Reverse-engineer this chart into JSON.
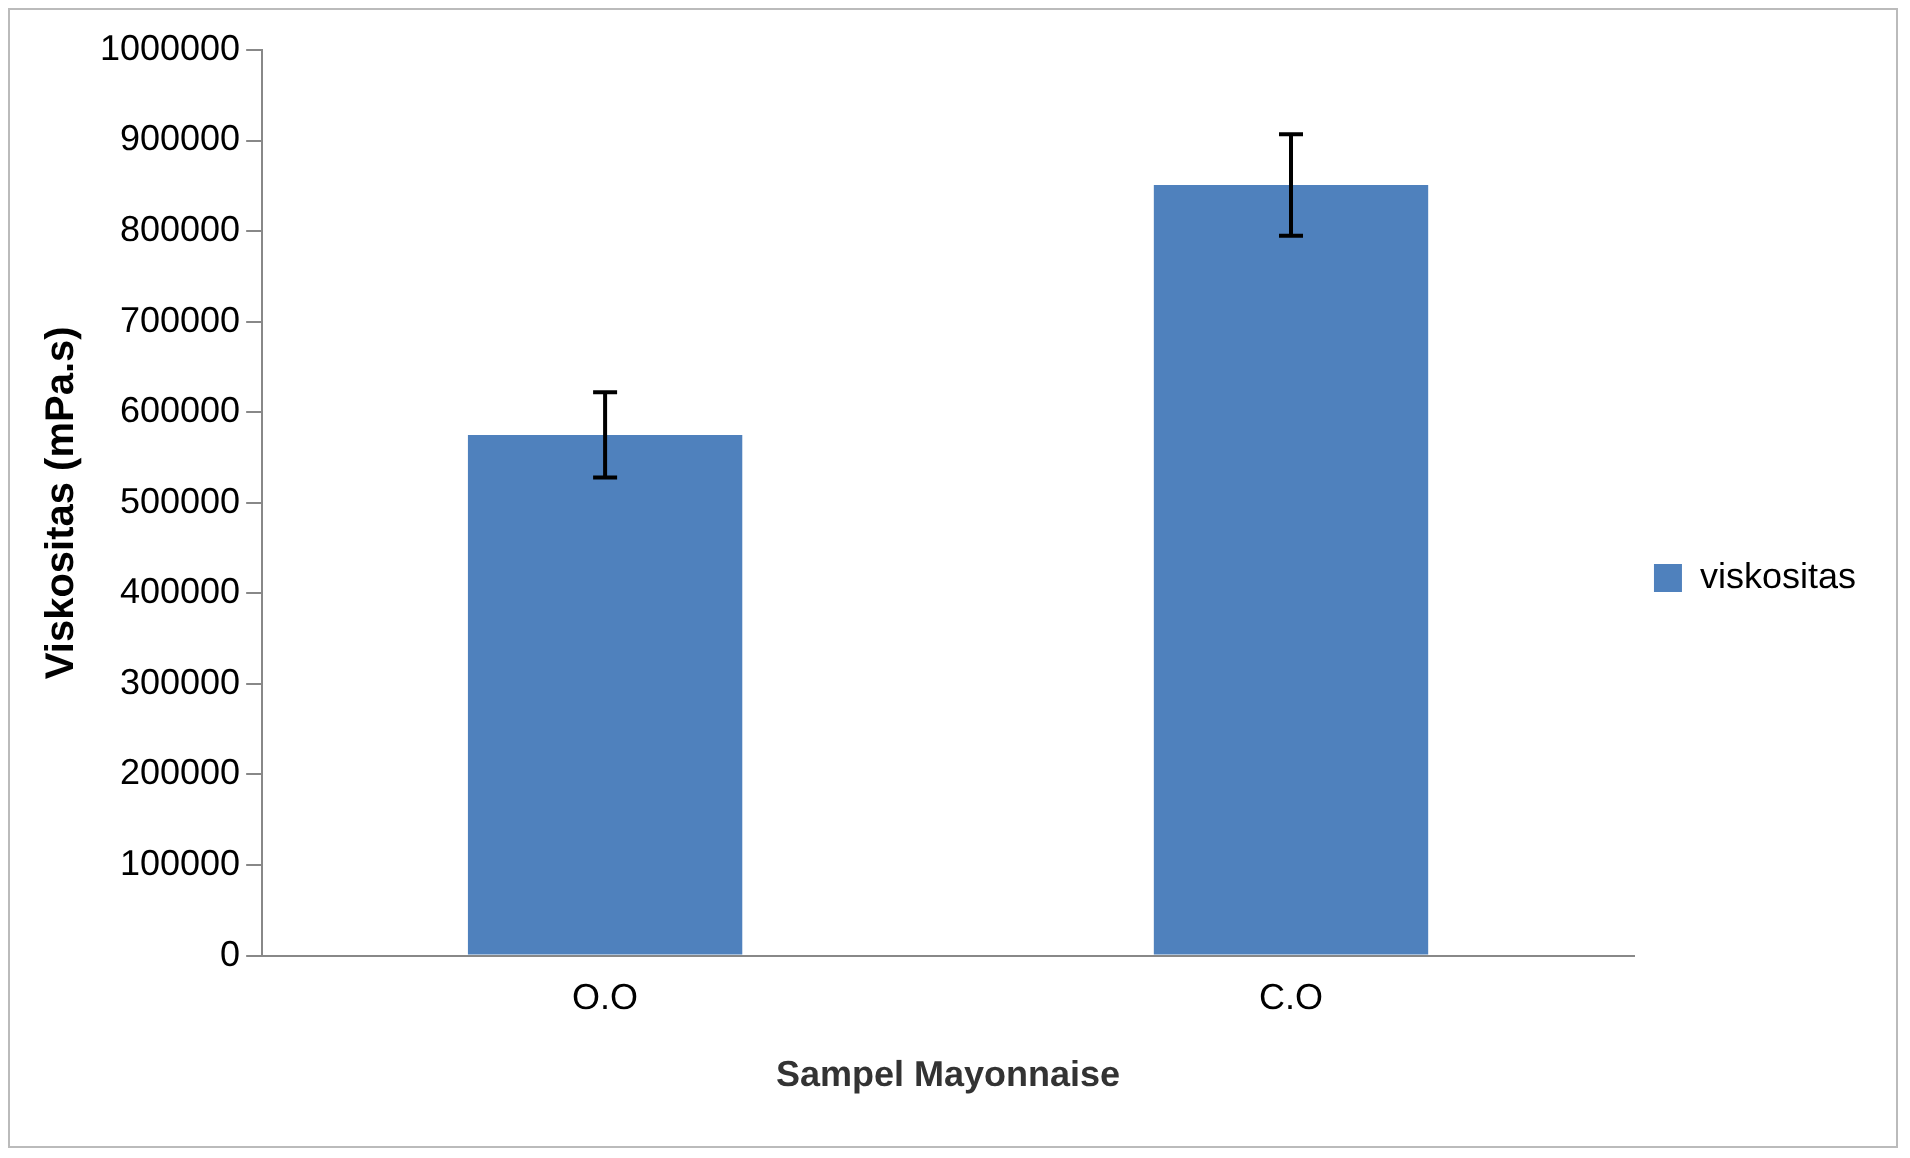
{
  "chart_data": {
    "type": "bar",
    "xlabel": "Sampel Mayonnaise",
    "ylabel": "Viskositas (mPa.s)",
    "categories": [
      "O.O",
      "C.O"
    ],
    "series": [
      {
        "name": "viskositas",
        "color": "#4f81bd",
        "values": [
          575000,
          851000
        ],
        "errors": [
          47000,
          56000
        ]
      }
    ],
    "ylim": [
      0,
      1000000
    ],
    "yticks": [
      0,
      100000,
      200000,
      300000,
      400000,
      500000,
      600000,
      700000,
      800000,
      900000,
      1000000
    ],
    "grid": false,
    "legend": "right"
  }
}
